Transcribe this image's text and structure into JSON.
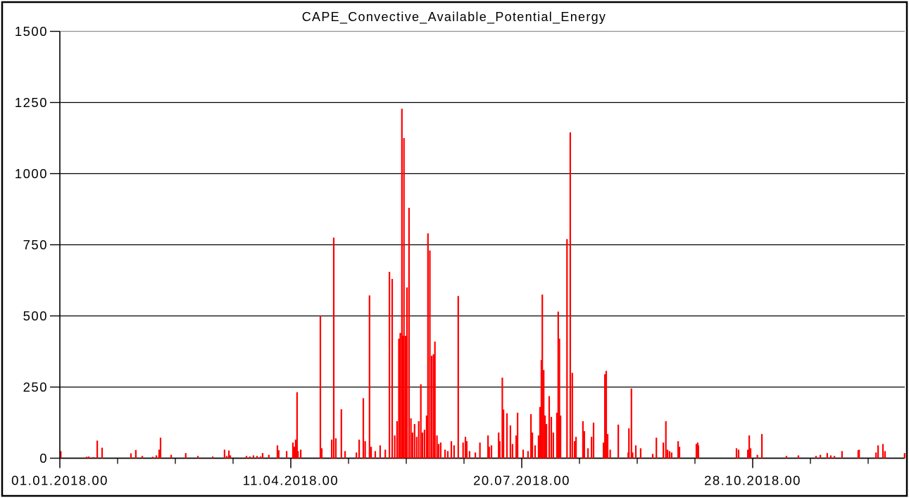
{
  "window": {
    "background": "#ffffff",
    "frame_color": "#000000"
  },
  "chart_data": {
    "type": "bar",
    "title": "CAPE_Convective_Available_Potential_Energy",
    "xlabel": "",
    "ylabel": "",
    "x_unit": "days since 01.01.2018 00:00",
    "xlim_days": [
      0,
      366
    ],
    "ylim": [
      0,
      1500
    ],
    "y_ticks": [
      0,
      250,
      500,
      750,
      1000,
      1250,
      1500
    ],
    "x_tick_days": [
      0,
      100,
      200,
      300
    ],
    "x_tick_labels": [
      "01.01.2018.00",
      "11.04.2018.00",
      "20.07.2018.00",
      "28.10.2018.00"
    ],
    "x_minor_tick_interval_days": 25,
    "grid": true,
    "legend": "none",
    "series_name": "CAPE",
    "colors": {
      "bar": "#ff0000",
      "grid": "#000000",
      "axis": "#000000",
      "top_boundary": "#8f8f8f",
      "frame": "#000000",
      "text": "#000000",
      "background": "#ffffff"
    },
    "points": [
      [
        0.4,
        25
      ],
      [
        11.6,
        5
      ],
      [
        12.5,
        6
      ],
      [
        14.6,
        4
      ],
      [
        16.2,
        62
      ],
      [
        18.3,
        37
      ],
      [
        30.8,
        17
      ],
      [
        32.9,
        29
      ],
      [
        35.7,
        8
      ],
      [
        40.2,
        5
      ],
      [
        41.8,
        10
      ],
      [
        43.0,
        30
      ],
      [
        43.6,
        72
      ],
      [
        48.2,
        12
      ],
      [
        54.5,
        18
      ],
      [
        59.8,
        8
      ],
      [
        66.2,
        6
      ],
      [
        71.3,
        30
      ],
      [
        72.3,
        8
      ],
      [
        73.2,
        27
      ],
      [
        73.8,
        10
      ],
      [
        80.8,
        8
      ],
      [
        82.3,
        6
      ],
      [
        83.8,
        10
      ],
      [
        85.4,
        8
      ],
      [
        86.9,
        6
      ],
      [
        87.8,
        18
      ],
      [
        90.5,
        12
      ],
      [
        94.2,
        45
      ],
      [
        94.8,
        28
      ],
      [
        98.2,
        25
      ],
      [
        100.9,
        55
      ],
      [
        101.5,
        40
      ],
      [
        102.1,
        65
      ],
      [
        102.7,
        232
      ],
      [
        103.1,
        25
      ],
      [
        104.3,
        30
      ],
      [
        112.8,
        500
      ],
      [
        113.4,
        35
      ],
      [
        117.7,
        65
      ],
      [
        118.6,
        775
      ],
      [
        119.5,
        70
      ],
      [
        121.9,
        172
      ],
      [
        123.5,
        25
      ],
      [
        128.4,
        20
      ],
      [
        129.6,
        65
      ],
      [
        131.4,
        211
      ],
      [
        132.2,
        60
      ],
      [
        134.1,
        572
      ],
      [
        134.8,
        40
      ],
      [
        136.6,
        25
      ],
      [
        138.7,
        45
      ],
      [
        140.9,
        30
      ],
      [
        142.7,
        655
      ],
      [
        143.9,
        630
      ],
      [
        145.0,
        80
      ],
      [
        146.0,
        130
      ],
      [
        146.8,
        420
      ],
      [
        147.4,
        440
      ],
      [
        148.1,
        1228
      ],
      [
        148.5,
        430
      ],
      [
        149.0,
        1125
      ],
      [
        149.7,
        430
      ],
      [
        150.3,
        600
      ],
      [
        151.2,
        880
      ],
      [
        152.0,
        140
      ],
      [
        152.7,
        90
      ],
      [
        153.6,
        120
      ],
      [
        154.5,
        75
      ],
      [
        155.4,
        130
      ],
      [
        156.3,
        260
      ],
      [
        157.0,
        90
      ],
      [
        157.9,
        100
      ],
      [
        158.8,
        150
      ],
      [
        159.4,
        790
      ],
      [
        160.2,
        730
      ],
      [
        161.0,
        360
      ],
      [
        161.8,
        365
      ],
      [
        162.4,
        410
      ],
      [
        163.3,
        80
      ],
      [
        164.0,
        50
      ],
      [
        164.9,
        55
      ],
      [
        166.8,
        30
      ],
      [
        168.0,
        25
      ],
      [
        169.5,
        60
      ],
      [
        170.7,
        45
      ],
      [
        172.5,
        570
      ],
      [
        174.6,
        55
      ],
      [
        175.6,
        75
      ],
      [
        176.2,
        60
      ],
      [
        177.4,
        25
      ],
      [
        179.9,
        20
      ],
      [
        181.9,
        55
      ],
      [
        185.4,
        80
      ],
      [
        185.9,
        40
      ],
      [
        186.9,
        45
      ],
      [
        190.0,
        90
      ],
      [
        190.5,
        60
      ],
      [
        191.6,
        283
      ],
      [
        192.1,
        171
      ],
      [
        193.6,
        158
      ],
      [
        195.1,
        115
      ],
      [
        196.0,
        50
      ],
      [
        197.6,
        80
      ],
      [
        198.2,
        160
      ],
      [
        200.6,
        30
      ],
      [
        202.7,
        25
      ],
      [
        204.0,
        155
      ],
      [
        204.6,
        90
      ],
      [
        205.8,
        45
      ],
      [
        207.3,
        80
      ],
      [
        207.9,
        180
      ],
      [
        208.5,
        345
      ],
      [
        208.9,
        575
      ],
      [
        209.5,
        310
      ],
      [
        210.1,
        150
      ],
      [
        210.7,
        120
      ],
      [
        211.9,
        218
      ],
      [
        212.8,
        145
      ],
      [
        213.7,
        90
      ],
      [
        215.2,
        160
      ],
      [
        215.8,
        515
      ],
      [
        216.3,
        420
      ],
      [
        216.8,
        150
      ],
      [
        219.6,
        770
      ],
      [
        221.0,
        1145
      ],
      [
        221.9,
        300
      ],
      [
        222.9,
        60
      ],
      [
        223.5,
        75
      ],
      [
        226.5,
        130
      ],
      [
        227.1,
        95
      ],
      [
        228.7,
        35
      ],
      [
        230.2,
        75
      ],
      [
        231.1,
        125
      ],
      [
        235.4,
        55
      ],
      [
        236.0,
        295
      ],
      [
        236.6,
        307
      ],
      [
        237.2,
        85
      ],
      [
        238.3,
        30
      ],
      [
        241.8,
        118
      ],
      [
        246.1,
        20
      ],
      [
        246.4,
        105
      ],
      [
        247.5,
        245
      ],
      [
        248.0,
        20
      ],
      [
        249.4,
        45
      ],
      [
        251.5,
        35
      ],
      [
        256.7,
        15
      ],
      [
        258.3,
        72
      ],
      [
        261.3,
        55
      ],
      [
        262.4,
        130
      ],
      [
        263.1,
        30
      ],
      [
        264.0,
        25
      ],
      [
        264.9,
        20
      ],
      [
        267.7,
        60
      ],
      [
        268.3,
        40
      ],
      [
        275.6,
        50
      ],
      [
        276.2,
        55
      ],
      [
        276.5,
        45
      ],
      [
        293.0,
        35
      ],
      [
        293.9,
        30
      ],
      [
        297.9,
        30
      ],
      [
        298.5,
        80
      ],
      [
        299.1,
        35
      ],
      [
        302.0,
        12
      ],
      [
        304.0,
        85
      ],
      [
        314.6,
        8
      ],
      [
        319.8,
        10
      ],
      [
        327.4,
        8
      ],
      [
        329.3,
        12
      ],
      [
        332.3,
        18
      ],
      [
        333.8,
        10
      ],
      [
        335.4,
        8
      ],
      [
        338.7,
        25
      ],
      [
        345.7,
        28
      ],
      [
        346.1,
        30
      ],
      [
        353.4,
        20
      ],
      [
        354.3,
        45
      ],
      [
        356.4,
        50
      ],
      [
        357.3,
        25
      ],
      [
        365.8,
        18
      ]
    ]
  }
}
